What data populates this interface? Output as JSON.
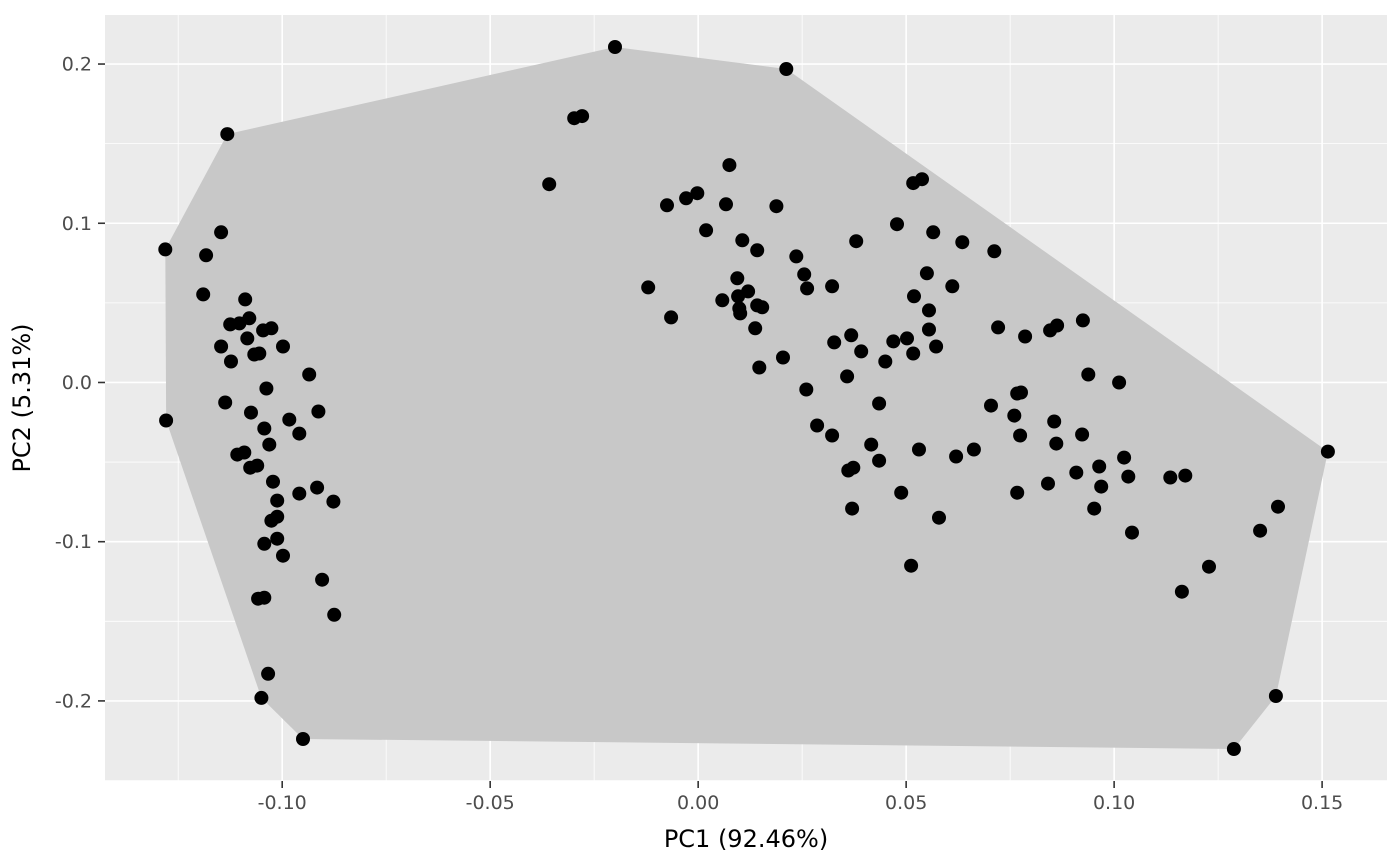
{
  "chart_data": {
    "type": "scatter",
    "title": "",
    "xlabel": "PC1 (92.46%)",
    "ylabel": "PC2 (5.31%)",
    "xlim": [
      -0.1426,
      0.1656
    ],
    "ylim": [
      -0.2503,
      0.2308
    ],
    "x_ticks": [
      -0.1,
      -0.05,
      0.0,
      0.05,
      0.1,
      0.15
    ],
    "x_tick_labels": [
      "-0.10",
      "-0.05",
      "0.00",
      "0.05",
      "0.10",
      "0.15"
    ],
    "y_ticks": [
      0.2,
      0.1,
      0.0,
      -0.1,
      -0.2
    ],
    "y_tick_labels": [
      "0.2",
      "0.1",
      "0.0",
      "-0.1",
      "-0.2"
    ],
    "grid": "major+minor",
    "legend": "none",
    "colors": {
      "panel_background": "#EBEBEB",
      "gridline": "#FFFFFF",
      "hull_fill": "#C8C8C8",
      "point": "#000000",
      "tick_mark": "#333333",
      "tick_label": "#4D4D4D",
      "axis_title": "#000000",
      "figure_background": "#FFFFFF"
    },
    "hull_polygon": [
      [
        -0.02,
        0.2107
      ],
      [
        0.0212,
        0.1969
      ],
      [
        0.1514,
        -0.0434
      ],
      [
        0.1389,
        -0.1969
      ],
      [
        0.1288,
        -0.2302
      ],
      [
        -0.095,
        -0.2239
      ],
      [
        -0.105,
        -0.1981
      ],
      [
        -0.1279,
        -0.0239
      ],
      [
        -0.1281,
        0.0836
      ],
      [
        -0.1132,
        0.156
      ]
    ],
    "series": [
      {
        "name": "samples",
        "points": [
          [
            -0.1147,
            0.0943
          ],
          [
            -0.1281,
            0.0836
          ],
          [
            -0.1183,
            0.0799
          ],
          [
            -0.119,
            0.0553
          ],
          [
            -0.1089,
            0.0522
          ],
          [
            -0.1125,
            0.0365
          ],
          [
            -0.1103,
            0.0371
          ],
          [
            -0.1079,
            0.0403
          ],
          [
            -0.1084,
            0.0277
          ],
          [
            -0.1046,
            0.0327
          ],
          [
            -0.1026,
            0.034
          ],
          [
            -0.1147,
            0.0226
          ],
          [
            -0.1067,
            0.0176
          ],
          [
            -0.1055,
            0.0182
          ],
          [
            -0.1123,
            0.0132
          ],
          [
            -0.0998,
            0.0226
          ],
          [
            -0.0935,
            0.005
          ],
          [
            -0.1038,
            -0.0038
          ],
          [
            -0.1137,
            -0.0126
          ],
          [
            -0.1279,
            -0.0239
          ],
          [
            -0.1075,
            -0.0189
          ],
          [
            -0.1043,
            -0.0289
          ],
          [
            -0.0983,
            -0.0233
          ],
          [
            -0.0913,
            -0.0182
          ],
          [
            -0.0959,
            -0.0321
          ],
          [
            -0.1031,
            -0.039
          ],
          [
            -0.1108,
            -0.0453
          ],
          [
            -0.1091,
            -0.044
          ],
          [
            -0.1077,
            -0.0535
          ],
          [
            -0.106,
            -0.0522
          ],
          [
            -0.1022,
            -0.0623
          ],
          [
            -0.0959,
            -0.0698
          ],
          [
            -0.0916,
            -0.066
          ],
          [
            -0.1012,
            -0.0742
          ],
          [
            -0.0877,
            -0.0748
          ],
          [
            -0.1026,
            -0.0868
          ],
          [
            -0.1012,
            -0.0843
          ],
          [
            -0.1012,
            -0.0981
          ],
          [
            -0.1043,
            -0.1013
          ],
          [
            -0.0998,
            -0.1088
          ],
          [
            -0.0904,
            -0.1239
          ],
          [
            -0.1058,
            -0.1358
          ],
          [
            -0.1043,
            -0.1352
          ],
          [
            -0.0875,
            -0.1459
          ],
          [
            -0.1034,
            -0.183
          ],
          [
            -0.105,
            -0.1981
          ],
          [
            -0.095,
            -0.2239
          ],
          [
            -0.1132,
            0.156
          ],
          [
            -0.02,
            0.2107
          ],
          [
            0.0212,
            0.1969
          ],
          [
            -0.0298,
            0.166
          ],
          [
            -0.0279,
            0.1673
          ],
          [
            -0.0358,
            0.1245
          ],
          [
            0.0075,
            0.1365
          ],
          [
            -0.0002,
            0.1189
          ],
          [
            -0.0029,
            0.1157
          ],
          [
            -0.0075,
            0.1113
          ],
          [
            0.0067,
            0.1119
          ],
          [
            0.0188,
            0.1107
          ],
          [
            0.0019,
            0.0956
          ],
          [
            0.0106,
            0.0893
          ],
          [
            0.0142,
            0.083
          ],
          [
            0.0236,
            0.0792
          ],
          [
            0.0255,
            0.0679
          ],
          [
            0.0094,
            0.0654
          ],
          [
            0.0262,
            0.0591
          ],
          [
            -0.012,
            0.0597
          ],
          [
            0.0096,
            0.0541
          ],
          [
            0.012,
            0.0572
          ],
          [
            0.0058,
            0.0516
          ],
          [
            0.0142,
            0.0484
          ],
          [
            0.0099,
            0.0465
          ],
          [
            0.0322,
            0.0604
          ],
          [
            -0.0065,
            0.0409
          ],
          [
            0.0101,
            0.0434
          ],
          [
            0.0154,
            0.0472
          ],
          [
            0.0519,
            0.0541
          ],
          [
            0.0555,
            0.0453
          ],
          [
            0.0137,
            0.034
          ],
          [
            0.0517,
            0.1252
          ],
          [
            0.0538,
            0.1277
          ],
          [
            0.0478,
            0.0994
          ],
          [
            0.038,
            0.0887
          ],
          [
            0.0565,
            0.0943
          ],
          [
            0.055,
            0.0686
          ],
          [
            0.0635,
            0.0881
          ],
          [
            0.0712,
            0.0824
          ],
          [
            0.0611,
            0.0604
          ],
          [
            0.0327,
            0.0252
          ],
          [
            0.0368,
            0.0296
          ],
          [
            0.0392,
            0.0195
          ],
          [
            0.0469,
            0.0258
          ],
          [
            0.0502,
            0.0277
          ],
          [
            0.0517,
            0.0182
          ],
          [
            0.045,
            0.0132
          ],
          [
            0.0572,
            0.0226
          ],
          [
            0.0555,
            0.0333
          ],
          [
            0.0147,
            0.0094
          ],
          [
            0.0204,
            0.0157
          ],
          [
            0.0358,
            0.0038
          ],
          [
            0.026,
            -0.0044
          ],
          [
            0.0435,
            -0.0132
          ],
          [
            0.0286,
            -0.027
          ],
          [
            0.0322,
            -0.0333
          ],
          [
            0.0416,
            -0.039
          ],
          [
            0.0435,
            -0.0491
          ],
          [
            0.0531,
            -0.0421
          ],
          [
            0.0361,
            -0.0553
          ],
          [
            0.0373,
            -0.0535
          ],
          [
            0.0488,
            -0.0692
          ],
          [
            0.037,
            -0.0792
          ],
          [
            0.0579,
            -0.0849
          ],
          [
            0.0512,
            -0.1151
          ],
          [
            0.0721,
            0.0346
          ],
          [
            0.0786,
            0.0289
          ],
          [
            0.0846,
            0.0327
          ],
          [
            0.0863,
            0.0358
          ],
          [
            0.0925,
            0.039
          ],
          [
            0.0938,
            0.005
          ],
          [
            0.1012,
            0.0
          ],
          [
            0.0767,
            -0.0069
          ],
          [
            0.0776,
            -0.0063
          ],
          [
            0.0704,
            -0.0145
          ],
          [
            0.076,
            -0.0208
          ],
          [
            0.0856,
            -0.0245
          ],
          [
            0.0774,
            -0.0333
          ],
          [
            0.0923,
            -0.0327
          ],
          [
            0.0861,
            -0.0384
          ],
          [
            0.0663,
            -0.0421
          ],
          [
            0.062,
            -0.0465
          ],
          [
            0.1024,
            -0.0472
          ],
          [
            0.0964,
            -0.0528
          ],
          [
            0.0909,
            -0.0566
          ],
          [
            0.1034,
            -0.0591
          ],
          [
            0.1135,
            -0.0597
          ],
          [
            0.1171,
            -0.0585
          ],
          [
            0.0841,
            -0.0635
          ],
          [
            0.0767,
            -0.0692
          ],
          [
            0.0969,
            -0.0654
          ],
          [
            0.0952,
            -0.0792
          ],
          [
            0.1043,
            -0.0943
          ],
          [
            0.1351,
            -0.0931
          ],
          [
            0.1228,
            -0.1157
          ],
          [
            0.1163,
            -0.1314
          ],
          [
            0.1389,
            -0.1969
          ],
          [
            0.1288,
            -0.2302
          ],
          [
            0.1514,
            -0.0434
          ],
          [
            0.1394,
            -0.078
          ]
        ]
      }
    ]
  }
}
